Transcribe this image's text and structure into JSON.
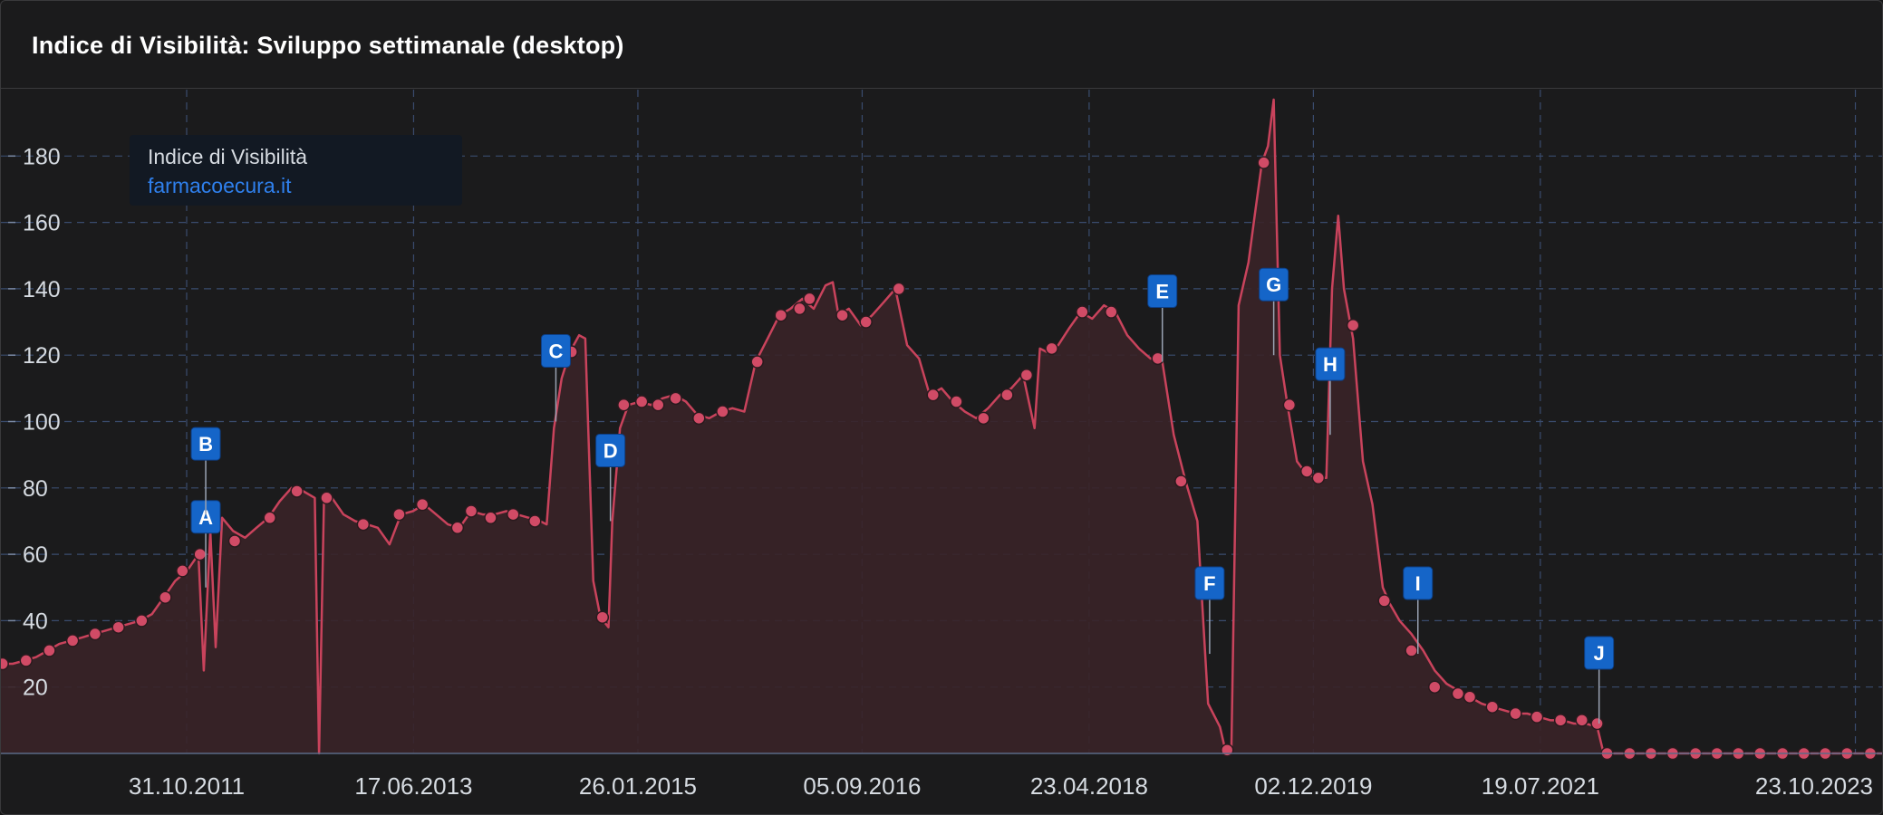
{
  "panel": {
    "title": "Indice di Visibilità: Sviluppo settimanale (desktop)"
  },
  "legend": {
    "title": "Indice di Visibilità",
    "domain": "farmacoecura.it"
  },
  "colors": {
    "line": "#c9435c",
    "area": "#3a2428",
    "marker": "#d14b66",
    "grid": "#3a4c6e",
    "badge": "#1565c8",
    "axis_text": "#d6dbe1"
  },
  "chart_data": {
    "type": "area",
    "x_axis": {
      "min": "2010-07-01",
      "max": "2024-01-01",
      "ticks": [
        "31.10.2011",
        "17.06.2013",
        "26.01.2015",
        "05.09.2016",
        "23.04.2018",
        "02.12.2019",
        "19.07.2021",
        "23.10.2023"
      ]
    },
    "y_axis": {
      "min": 0,
      "max": 200,
      "ticks": [
        20,
        40,
        60,
        80,
        100,
        120,
        140,
        160,
        180
      ]
    },
    "grid": true,
    "legend_position": "top-left",
    "series": [
      {
        "name": "farmacoecura.it",
        "points": [
          [
            "2010-07-01",
            27
          ],
          [
            "2010-08-01",
            27
          ],
          [
            "2010-09-01",
            28
          ],
          [
            "2010-10-01",
            29
          ],
          [
            "2010-11-01",
            31
          ],
          [
            "2010-12-01",
            33
          ],
          [
            "2011-01-01",
            34
          ],
          [
            "2011-02-01",
            35
          ],
          [
            "2011-03-01",
            36
          ],
          [
            "2011-04-01",
            37
          ],
          [
            "2011-05-01",
            38
          ],
          [
            "2011-06-01",
            39
          ],
          [
            "2011-07-01",
            40
          ],
          [
            "2011-08-01",
            42
          ],
          [
            "2011-09-01",
            47
          ],
          [
            "2011-10-01",
            52
          ],
          [
            "2011-11-01",
            55
          ],
          [
            "2011-12-01",
            60
          ],
          [
            "2011-12-15",
            25
          ],
          [
            "2012-01-01",
            67
          ],
          [
            "2012-01-15",
            32
          ],
          [
            "2012-02-01",
            71
          ],
          [
            "2012-03-01",
            67
          ],
          [
            "2012-04-01",
            65
          ],
          [
            "2012-05-01",
            68
          ],
          [
            "2012-06-01",
            71
          ],
          [
            "2012-07-01",
            76
          ],
          [
            "2012-08-01",
            80
          ],
          [
            "2012-09-01",
            79
          ],
          [
            "2012-10-01",
            77
          ],
          [
            "2012-10-12",
            0
          ],
          [
            "2012-10-25",
            76
          ],
          [
            "2012-11-15",
            77
          ],
          [
            "2012-12-15",
            72
          ],
          [
            "2013-01-15",
            70
          ],
          [
            "2013-02-15",
            69
          ],
          [
            "2013-03-15",
            68
          ],
          [
            "2013-04-15",
            63
          ],
          [
            "2013-05-15",
            72
          ],
          [
            "2013-06-15",
            73
          ],
          [
            "2013-07-15",
            75
          ],
          [
            "2013-08-15",
            72
          ],
          [
            "2013-09-15",
            69
          ],
          [
            "2013-10-15",
            68
          ],
          [
            "2013-11-15",
            73
          ],
          [
            "2013-12-15",
            72
          ],
          [
            "2014-01-15",
            72
          ],
          [
            "2014-02-15",
            73
          ],
          [
            "2014-03-15",
            72
          ],
          [
            "2014-04-15",
            71
          ],
          [
            "2014-05-15",
            70
          ],
          [
            "2014-06-01",
            69
          ],
          [
            "2014-06-20",
            98
          ],
          [
            "2014-07-10",
            113
          ],
          [
            "2014-08-01",
            121
          ],
          [
            "2014-08-25",
            126
          ],
          [
            "2014-09-10",
            125
          ],
          [
            "2014-10-01",
            52
          ],
          [
            "2014-10-20",
            41
          ],
          [
            "2014-11-10",
            38
          ],
          [
            "2014-11-20",
            70
          ],
          [
            "2014-12-10",
            98
          ],
          [
            "2015-01-01",
            105
          ],
          [
            "2015-02-01",
            106
          ],
          [
            "2015-03-01",
            105
          ],
          [
            "2015-04-01",
            107
          ],
          [
            "2015-05-01",
            108
          ],
          [
            "2015-06-01",
            106
          ],
          [
            "2015-07-01",
            102
          ],
          [
            "2015-08-01",
            101
          ],
          [
            "2015-09-01",
            103
          ],
          [
            "2015-10-01",
            104
          ],
          [
            "2015-11-01",
            103
          ],
          [
            "2015-12-01",
            118
          ],
          [
            "2016-01-01",
            125
          ],
          [
            "2016-02-01",
            132
          ],
          [
            "2016-03-01",
            134
          ],
          [
            "2016-04-01",
            137
          ],
          [
            "2016-05-01",
            134
          ],
          [
            "2016-06-01",
            141
          ],
          [
            "2016-06-20",
            142
          ],
          [
            "2016-07-05",
            132
          ],
          [
            "2016-08-01",
            134
          ],
          [
            "2016-09-01",
            129
          ],
          [
            "2016-10-01",
            132
          ],
          [
            "2016-11-01",
            136
          ],
          [
            "2016-12-01",
            140
          ],
          [
            "2017-01-01",
            123
          ],
          [
            "2017-02-01",
            119
          ],
          [
            "2017-03-01",
            108
          ],
          [
            "2017-04-01",
            110
          ],
          [
            "2017-05-01",
            106
          ],
          [
            "2017-06-01",
            103
          ],
          [
            "2017-07-01",
            101
          ],
          [
            "2017-08-01",
            104
          ],
          [
            "2017-09-01",
            108
          ],
          [
            "2017-10-01",
            110
          ],
          [
            "2017-11-01",
            114
          ],
          [
            "2017-12-01",
            98
          ],
          [
            "2017-12-15",
            122
          ],
          [
            "2018-01-01",
            121
          ],
          [
            "2018-02-01",
            123
          ],
          [
            "2018-03-01",
            128
          ],
          [
            "2018-04-01",
            133
          ],
          [
            "2018-05-01",
            131
          ],
          [
            "2018-06-01",
            135
          ],
          [
            "2018-07-01",
            133
          ],
          [
            "2018-08-01",
            126
          ],
          [
            "2018-09-01",
            122
          ],
          [
            "2018-10-01",
            119
          ],
          [
            "2018-11-01",
            118
          ],
          [
            "2018-12-01",
            96
          ],
          [
            "2019-01-01",
            82
          ],
          [
            "2019-02-01",
            70
          ],
          [
            "2019-03-01",
            15
          ],
          [
            "2019-04-01",
            8
          ],
          [
            "2019-04-15",
            1
          ],
          [
            "2019-05-01",
            1
          ],
          [
            "2019-05-20",
            135
          ],
          [
            "2019-06-15",
            148
          ],
          [
            "2019-07-01",
            162
          ],
          [
            "2019-07-20",
            178
          ],
          [
            "2019-08-05",
            183
          ],
          [
            "2019-08-20",
            197
          ],
          [
            "2019-09-05",
            120
          ],
          [
            "2019-09-25",
            105
          ],
          [
            "2019-10-20",
            88
          ],
          [
            "2019-11-15",
            84
          ],
          [
            "2019-12-15",
            83
          ],
          [
            "2020-01-05",
            83
          ],
          [
            "2020-01-20",
            140
          ],
          [
            "2020-02-05",
            162
          ],
          [
            "2020-02-20",
            140
          ],
          [
            "2020-03-15",
            125
          ],
          [
            "2020-04-10",
            88
          ],
          [
            "2020-05-05",
            75
          ],
          [
            "2020-06-01",
            50
          ],
          [
            "2020-06-20",
            45
          ],
          [
            "2020-07-15",
            40
          ],
          [
            "2020-08-15",
            36
          ],
          [
            "2020-09-15",
            31
          ],
          [
            "2020-10-15",
            25
          ],
          [
            "2020-11-15",
            21
          ],
          [
            "2020-12-15",
            19
          ],
          [
            "2021-01-15",
            17
          ],
          [
            "2021-02-15",
            15
          ],
          [
            "2021-03-15",
            14
          ],
          [
            "2021-04-15",
            13
          ],
          [
            "2021-05-15",
            12
          ],
          [
            "2021-06-15",
            12
          ],
          [
            "2021-07-15",
            11
          ],
          [
            "2021-08-15",
            10
          ],
          [
            "2021-09-15",
            10
          ],
          [
            "2021-10-15",
            9
          ],
          [
            "2021-11-15",
            9
          ],
          [
            "2021-12-15",
            8
          ],
          [
            "2022-01-01",
            0
          ],
          [
            "2022-03-01",
            0
          ],
          [
            "2022-06-01",
            0
          ],
          [
            "2022-09-01",
            0
          ],
          [
            "2022-12-01",
            0
          ],
          [
            "2023-03-01",
            0
          ],
          [
            "2023-06-01",
            0
          ],
          [
            "2023-09-01",
            0
          ],
          [
            "2023-12-01",
            0
          ],
          [
            "2024-01-01",
            0
          ]
        ],
        "markers": [
          [
            "2010-07-05",
            27
          ],
          [
            "2010-09-05",
            28
          ],
          [
            "2010-11-05",
            31
          ],
          [
            "2011-01-05",
            34
          ],
          [
            "2011-03-05",
            36
          ],
          [
            "2011-05-05",
            38
          ],
          [
            "2011-07-05",
            40
          ],
          [
            "2011-09-05",
            47
          ],
          [
            "2011-10-20",
            55
          ],
          [
            "2011-12-05",
            60
          ],
          [
            "2012-03-05",
            64
          ],
          [
            "2012-06-05",
            71
          ],
          [
            "2012-08-15",
            79
          ],
          [
            "2012-11-01",
            77
          ],
          [
            "2013-02-05",
            69
          ],
          [
            "2013-05-10",
            72
          ],
          [
            "2013-07-10",
            75
          ],
          [
            "2013-10-10",
            68
          ],
          [
            "2013-11-15",
            73
          ],
          [
            "2014-01-05",
            71
          ],
          [
            "2014-03-05",
            72
          ],
          [
            "2014-05-01",
            70
          ],
          [
            "2014-08-05",
            121
          ],
          [
            "2014-10-25",
            41
          ],
          [
            "2014-12-20",
            105
          ],
          [
            "2015-02-05",
            106
          ],
          [
            "2015-03-20",
            105
          ],
          [
            "2015-05-05",
            107
          ],
          [
            "2015-07-05",
            101
          ],
          [
            "2015-09-05",
            103
          ],
          [
            "2015-12-05",
            118
          ],
          [
            "2016-02-05",
            132
          ],
          [
            "2016-03-25",
            134
          ],
          [
            "2016-04-20",
            137
          ],
          [
            "2016-07-15",
            132
          ],
          [
            "2016-09-15",
            130
          ],
          [
            "2016-12-10",
            140
          ],
          [
            "2017-03-10",
            108
          ],
          [
            "2017-05-10",
            106
          ],
          [
            "2017-07-20",
            101
          ],
          [
            "2017-09-20",
            108
          ],
          [
            "2017-11-10",
            114
          ],
          [
            "2018-01-15",
            122
          ],
          [
            "2018-04-05",
            133
          ],
          [
            "2018-06-20",
            133
          ],
          [
            "2018-10-20",
            119
          ],
          [
            "2018-12-20",
            82
          ],
          [
            "2019-04-20",
            1
          ],
          [
            "2019-07-25",
            178
          ],
          [
            "2019-09-30",
            105
          ],
          [
            "2019-11-15",
            85
          ],
          [
            "2019-12-15",
            83
          ],
          [
            "2020-03-15",
            129
          ],
          [
            "2020-06-05",
            46
          ],
          [
            "2020-08-15",
            31
          ],
          [
            "2020-10-15",
            20
          ],
          [
            "2020-12-15",
            18
          ],
          [
            "2021-01-15",
            17
          ],
          [
            "2021-03-15",
            14
          ],
          [
            "2021-05-15",
            12
          ],
          [
            "2021-07-10",
            11
          ],
          [
            "2021-09-10",
            10
          ],
          [
            "2021-11-05",
            10
          ],
          [
            "2021-12-15",
            9
          ],
          [
            "2022-01-10",
            0
          ],
          [
            "2022-03-10",
            0
          ],
          [
            "2022-05-05",
            0
          ],
          [
            "2022-07-01",
            0
          ],
          [
            "2022-08-30",
            0
          ],
          [
            "2022-10-25",
            0
          ],
          [
            "2022-12-20",
            0
          ],
          [
            "2023-02-15",
            0
          ],
          [
            "2023-04-15",
            0
          ],
          [
            "2023-06-10",
            0
          ],
          [
            "2023-08-05",
            0
          ],
          [
            "2023-10-01",
            0
          ],
          [
            "2023-12-01",
            0
          ]
        ]
      }
    ],
    "events": [
      {
        "label": "A",
        "date": "2011-12-20",
        "value": 50
      },
      {
        "label": "B",
        "date": "2011-12-20",
        "value": 72
      },
      {
        "label": "C",
        "date": "2014-06-25",
        "value": 100
      },
      {
        "label": "D",
        "date": "2014-11-15",
        "value": 70
      },
      {
        "label": "E",
        "date": "2018-11-01",
        "value": 118
      },
      {
        "label": "F",
        "date": "2019-03-05",
        "value": 30
      },
      {
        "label": "G",
        "date": "2019-08-20",
        "value": 120
      },
      {
        "label": "H",
        "date": "2020-01-15",
        "value": 96
      },
      {
        "label": "I",
        "date": "2020-09-01",
        "value": 30
      },
      {
        "label": "J",
        "date": "2021-12-20",
        "value": 9
      }
    ]
  }
}
